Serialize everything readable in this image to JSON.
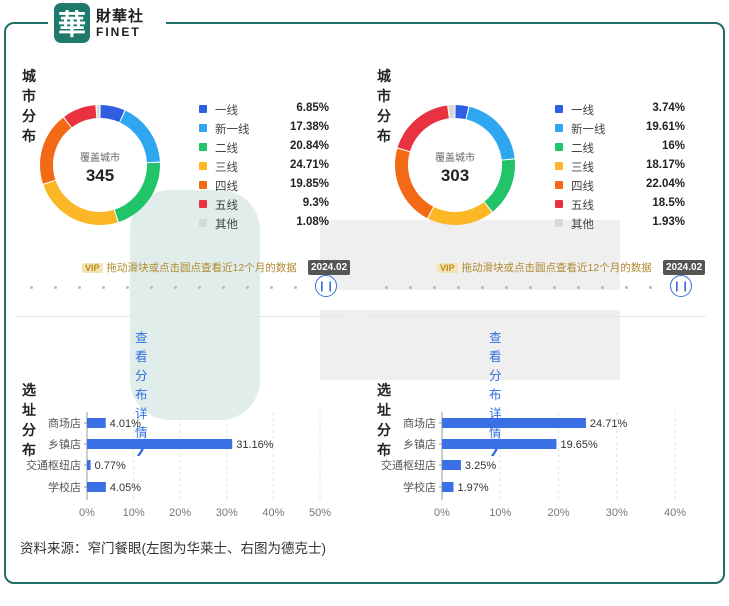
{
  "brand": {
    "seal_char": "華",
    "name_cn": "財華社",
    "name_en": "FINET"
  },
  "source_note": "资料来源：窄门餐眼(左图为华莱士、右图为德克士)",
  "vip_tag": "VIP",
  "colors": {
    "tier1": "#2f5fe0",
    "new_tier1": "#2ea7f0",
    "tier2": "#22c46a",
    "tier3": "#fbb726",
    "tier4": "#f36a16",
    "tier5": "#e8323f",
    "other": "#d8d8d8",
    "bar": "#3b6fe6",
    "frame": "#1f6f66"
  },
  "panels": [
    {
      "city_title": "城市分布",
      "center_label": "覆盖城市",
      "center_value": "345",
      "vip_text": "拖动滑块或点击圆点查看近12个月的数据",
      "date_label": "2024.02",
      "pause_icon": "pause-icon",
      "detail_link": "查看分布详情",
      "site_title": "选址分布"
    },
    {
      "city_title": "城市分布",
      "center_label": "覆盖城市",
      "center_value": "303",
      "vip_text": "拖动滑块或点击圆点查看近12个月的数据",
      "date_label": "2024.02",
      "pause_icon": "pause-icon",
      "detail_link": "查看分布详情",
      "site_title": "选址分布"
    }
  ],
  "chart_data": [
    {
      "type": "pie",
      "title": "城市分布",
      "categories": [
        "一线",
        "新一线",
        "二线",
        "三线",
        "四线",
        "五线",
        "其他"
      ],
      "values": [
        6.85,
        17.38,
        20.84,
        24.71,
        19.85,
        9.3,
        1.08
      ],
      "labels": [
        "6.85%",
        "17.38%",
        "20.84%",
        "24.71%",
        "19.85%",
        "9.3%",
        "1.08%"
      ],
      "center_text": "345",
      "legend": "right"
    },
    {
      "type": "pie",
      "title": "城市分布",
      "categories": [
        "一线",
        "新一线",
        "二线",
        "三线",
        "四线",
        "五线",
        "其他"
      ],
      "values": [
        3.74,
        19.61,
        16,
        18.17,
        22.04,
        18.5,
        1.93
      ],
      "labels": [
        "3.74%",
        "19.61%",
        "16%",
        "18.17%",
        "22.04%",
        "18.5%",
        "1.93%"
      ],
      "center_text": "303",
      "legend": "right"
    },
    {
      "type": "bar",
      "orientation": "horizontal",
      "title": "选址分布",
      "categories": [
        "商场店",
        "乡镇店",
        "交通枢纽店",
        "学校店"
      ],
      "values": [
        4.01,
        31.16,
        0.77,
        4.05
      ],
      "labels": [
        "4.01%",
        "31.16%",
        "0.77%",
        "4.05%"
      ],
      "ticks": [
        "0%",
        "10%",
        "20%",
        "30%",
        "40%",
        "50%"
      ],
      "xlim": [
        0,
        50
      ],
      "grid": true
    },
    {
      "type": "bar",
      "orientation": "horizontal",
      "title": "选址分布",
      "categories": [
        "商场店",
        "乡镇店",
        "交通枢纽店",
        "学校店"
      ],
      "values": [
        24.71,
        19.65,
        3.25,
        1.97
      ],
      "labels": [
        "24.71%",
        "19.65%",
        "3.25%",
        "1.97%"
      ],
      "ticks": [
        "0%",
        "10%",
        "20%",
        "30%",
        "40%"
      ],
      "xlim": [
        0,
        40
      ],
      "grid": true
    }
  ]
}
